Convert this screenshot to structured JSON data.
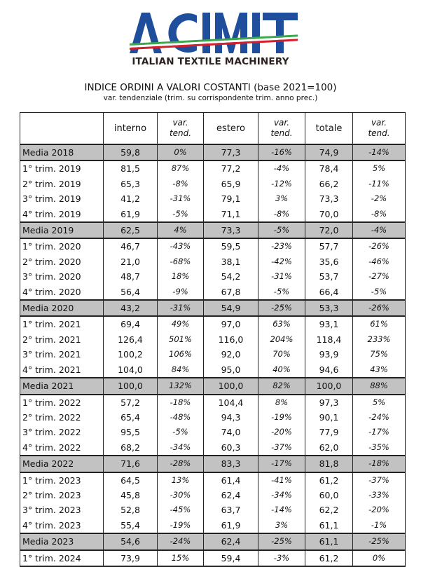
{
  "logo": {
    "text": "ACIMIT",
    "colors": {
      "blue": "#1f4e9c",
      "green": "#3aa84a",
      "red": "#d4202c"
    }
  },
  "tagline": "ITALIAN TEXTILE MACHINERY",
  "title": "INDICE ORDINI A VALORI COSTANTI (base 2021=100)",
  "subtitle": "var. tendenziale (trim. su corrispondente trim. anno prec.)",
  "table": {
    "headers": [
      "",
      "interno",
      "var.\ntend.",
      "estero",
      "var.\ntend.",
      "totale",
      "var.\ntend."
    ],
    "rows": [
      {
        "media": true,
        "cells": [
          "Media 2018",
          "59,8",
          "0%",
          "77,3",
          "-16%",
          "74,9",
          "-14%"
        ]
      },
      {
        "cells": [
          "1° trim. 2019",
          "81,5",
          "87%",
          "77,2",
          "-4%",
          "78,4",
          "5%"
        ]
      },
      {
        "cells": [
          "2° trim. 2019",
          "65,3",
          "-8%",
          "65,9",
          "-12%",
          "66,2",
          "-11%"
        ]
      },
      {
        "cells": [
          "3° trim. 2019",
          "41,2",
          "-31%",
          "79,1",
          "3%",
          "73,3",
          "-2%"
        ]
      },
      {
        "cells": [
          "4° trim. 2019",
          "61,9",
          "-5%",
          "71,1",
          "-8%",
          "70,0",
          "-8%"
        ]
      },
      {
        "media": true,
        "cells": [
          "Media 2019",
          "62,5",
          "4%",
          "73,3",
          "-5%",
          "72,0",
          "-4%"
        ]
      },
      {
        "cells": [
          "1° trim. 2020",
          "46,7",
          "-43%",
          "59,5",
          "-23%",
          "57,7",
          "-26%"
        ]
      },
      {
        "cells": [
          "2° trim. 2020",
          "21,0",
          "-68%",
          "38,1",
          "-42%",
          "35,6",
          "-46%"
        ]
      },
      {
        "cells": [
          "3° trim. 2020",
          "48,7",
          "18%",
          "54,2",
          "-31%",
          "53,7",
          "-27%"
        ]
      },
      {
        "cells": [
          "4° trim. 2020",
          "56,4",
          "-9%",
          "67,8",
          "-5%",
          "66,4",
          "-5%"
        ]
      },
      {
        "media": true,
        "cells": [
          "Media 2020",
          "43,2",
          "-31%",
          "54,9",
          "-25%",
          "53,3",
          "-26%"
        ]
      },
      {
        "cells": [
          "1° trim. 2021",
          "69,4",
          "49%",
          "97,0",
          "63%",
          "93,1",
          "61%"
        ]
      },
      {
        "cells": [
          "2° trim. 2021",
          "126,4",
          "501%",
          "116,0",
          "204%",
          "118,4",
          "233%"
        ]
      },
      {
        "cells": [
          "3° trim. 2021",
          "100,2",
          "106%",
          "92,0",
          "70%",
          "93,9",
          "75%"
        ]
      },
      {
        "cells": [
          "4° trim. 2021",
          "104,0",
          "84%",
          "95,0",
          "40%",
          "94,6",
          "43%"
        ]
      },
      {
        "media": true,
        "cells": [
          "Media 2021",
          "100,0",
          "132%",
          "100,0",
          "82%",
          "100,0",
          "88%"
        ]
      },
      {
        "cells": [
          "1° trim. 2022",
          "57,2",
          "-18%",
          "104,4",
          "8%",
          "97,3",
          "5%"
        ]
      },
      {
        "cells": [
          "2° trim. 2022",
          "65,4",
          "-48%",
          "94,3",
          "-19%",
          "90,1",
          "-24%"
        ]
      },
      {
        "cells": [
          "3° trim. 2022",
          "95,5",
          "-5%",
          "74,0",
          "-20%",
          "77,9",
          "-17%"
        ]
      },
      {
        "cells": [
          "4° trim. 2022",
          "68,2",
          "-34%",
          "60,3",
          "-37%",
          "62,0",
          "-35%"
        ]
      },
      {
        "media": true,
        "cells": [
          "Media 2022",
          "71,6",
          "-28%",
          "83,3",
          "-17%",
          "81,8",
          "-18%"
        ]
      },
      {
        "cells": [
          "1° trim. 2023",
          "64,5",
          "13%",
          "61,4",
          "-41%",
          "61,2",
          "-37%"
        ]
      },
      {
        "cells": [
          "2° trim. 2023",
          "45,8",
          "-30%",
          "62,4",
          "-34%",
          "60,0",
          "-33%"
        ]
      },
      {
        "cells": [
          "3° trim. 2023",
          "52,8",
          "-45%",
          "63,7",
          "-14%",
          "62,2",
          "-20%"
        ]
      },
      {
        "cells": [
          "4° trim. 2023",
          "55,4",
          "-19%",
          "61,9",
          "3%",
          "61,1",
          "-1%"
        ]
      },
      {
        "media": true,
        "cells": [
          "Media 2023",
          "54,6",
          "-24%",
          "62,4",
          "-25%",
          "61,1",
          "-25%"
        ]
      },
      {
        "cells": [
          "1° trim. 2024",
          "73,9",
          "15%",
          "59,4",
          "-3%",
          "61,2",
          "0%"
        ]
      }
    ],
    "media_row_color": "#c2c2c2"
  }
}
